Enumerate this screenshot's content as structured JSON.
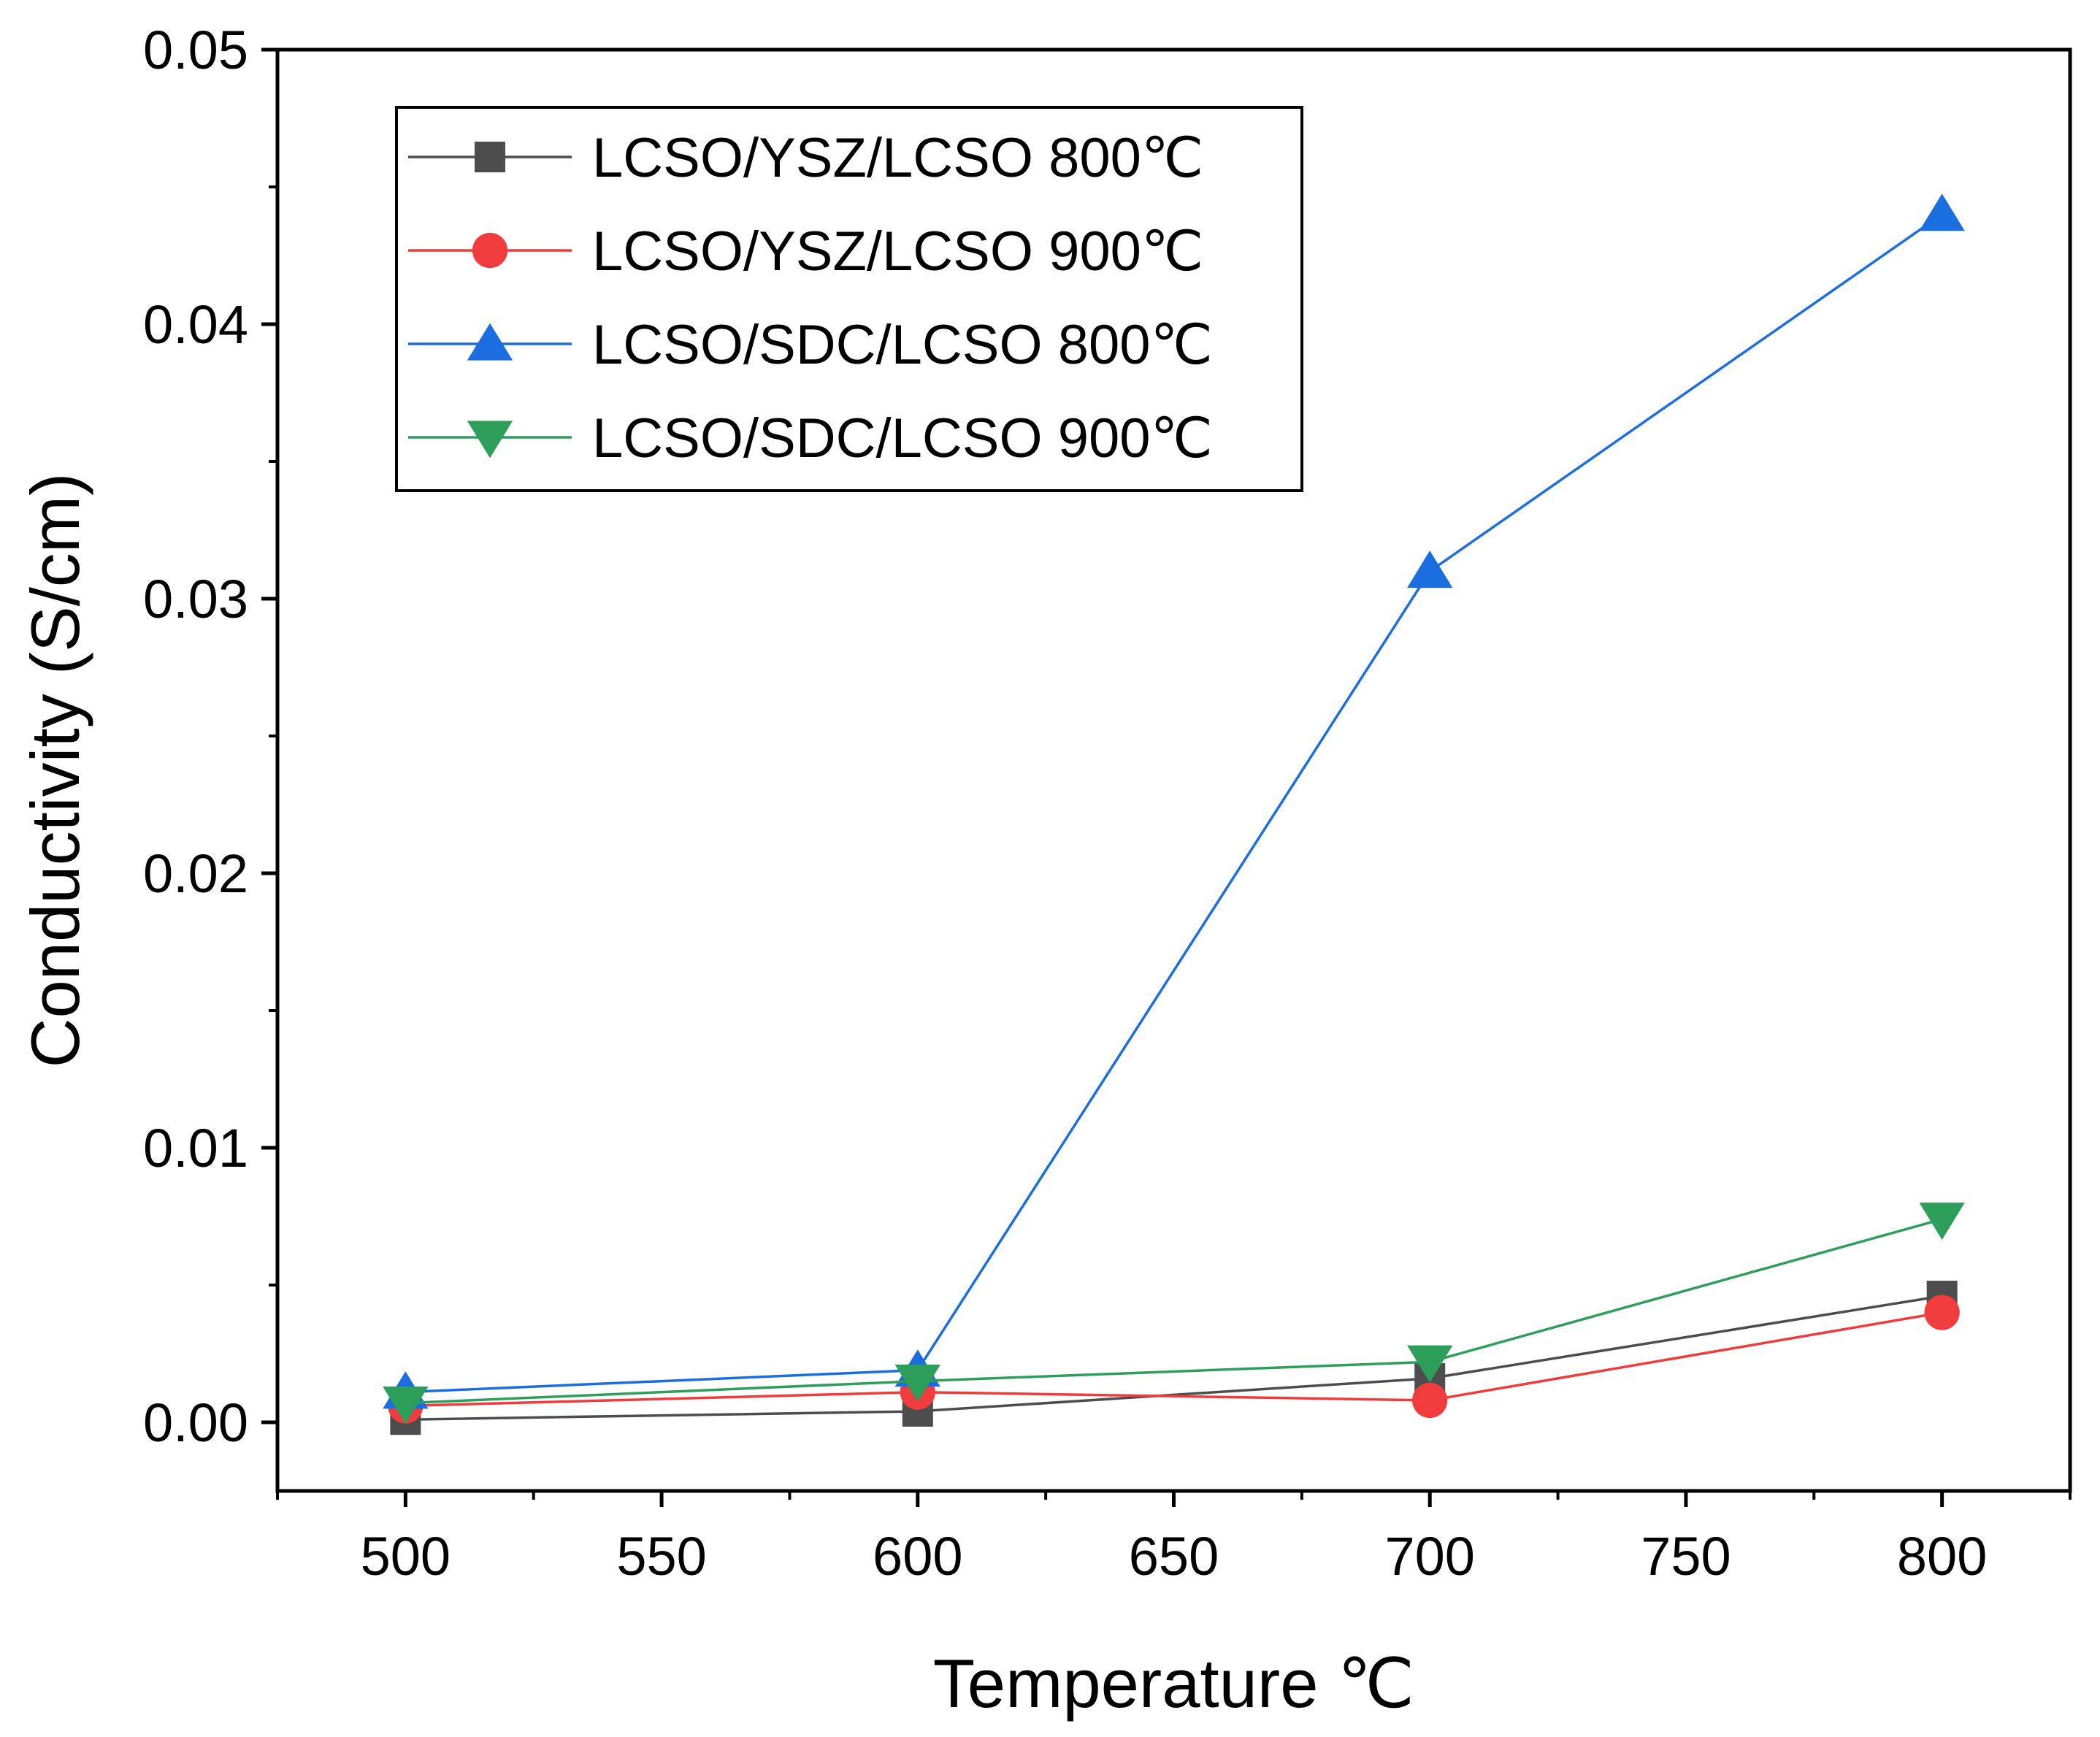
{
  "chart_data": {
    "type": "line",
    "title": "",
    "xlabel": "Temperature ℃",
    "ylabel": "Conductivity (S/cm)",
    "xlim": [
      475,
      825
    ],
    "ylim": [
      -0.0025,
      0.05
    ],
    "xticks": [
      500,
      550,
      600,
      650,
      700,
      750,
      800
    ],
    "xtick_labels": [
      "500",
      "550",
      "600",
      "650",
      "700",
      "750",
      "800"
    ],
    "yticks": [
      0.0,
      0.01,
      0.02,
      0.03,
      0.04,
      0.05
    ],
    "ytick_labels": [
      "0.00",
      "0.01",
      "0.02",
      "0.03",
      "0.04",
      "0.05"
    ],
    "grid": false,
    "legend_position": "top-left",
    "x": [
      500,
      600,
      700,
      800
    ],
    "series": [
      {
        "name": "LCSO/YSZ/LCSO 800℃",
        "values": [
          0.0001,
          0.0004,
          0.0016,
          0.0046
        ],
        "color": "#4d4d4d",
        "marker": "square"
      },
      {
        "name": "LCSO/YSZ/LCSO 900℃",
        "values": [
          0.0006,
          0.0011,
          0.0008,
          0.004
        ],
        "color": "#f03c3c",
        "marker": "circle"
      },
      {
        "name": "LCSO/SDC/LCSO 800℃",
        "values": [
          0.0011,
          0.0019,
          0.031,
          0.044
        ],
        "color": "#1a6ee0",
        "marker": "triangle-up"
      },
      {
        "name": "LCSO/SDC/LCSO 900℃",
        "values": [
          0.0007,
          0.0015,
          0.0022,
          0.0074
        ],
        "color": "#2e9e5b",
        "marker": "triangle-down"
      }
    ]
  }
}
